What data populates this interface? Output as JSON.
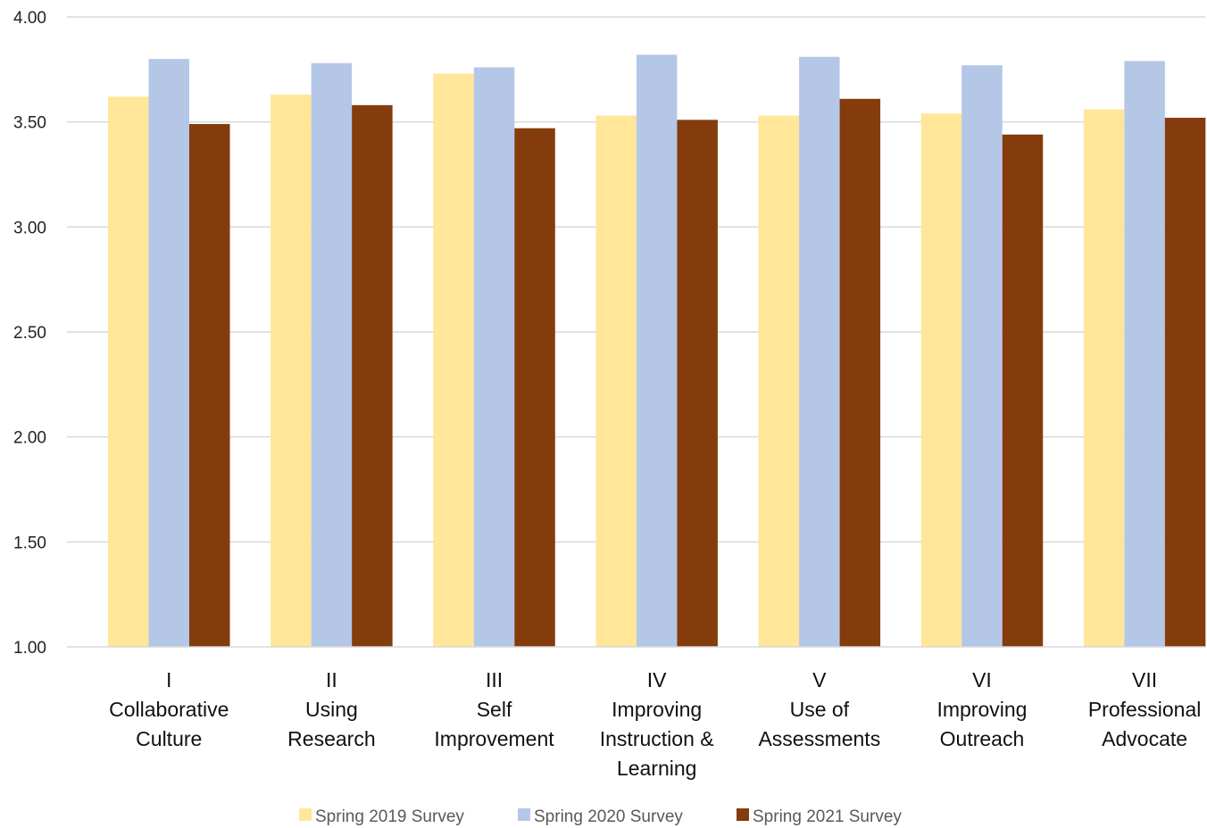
{
  "chart_data": {
    "type": "bar",
    "categories": [
      [
        "I",
        "Collaborative",
        "Culture"
      ],
      [
        "II",
        "Using",
        "Research"
      ],
      [
        "III",
        "Self",
        "Improvement"
      ],
      [
        "IV",
        "Improving",
        "Instruction &",
        "Learning"
      ],
      [
        "V",
        "Use of",
        "Assessments"
      ],
      [
        "VI",
        "Improving",
        "Outreach"
      ],
      [
        "VII",
        "Professional",
        "Advocate"
      ]
    ],
    "series": [
      {
        "name": "Spring 2019 Survey",
        "color": "#FFE699",
        "values": [
          3.62,
          3.63,
          3.73,
          3.53,
          3.53,
          3.54,
          3.56
        ]
      },
      {
        "name": "Spring 2020 Survey",
        "color": "#B4C7E7",
        "values": [
          3.8,
          3.78,
          3.76,
          3.82,
          3.81,
          3.77,
          3.79
        ]
      },
      {
        "name": "Spring 2021 Survey",
        "color": "#843C0C",
        "values": [
          3.49,
          3.58,
          3.47,
          3.51,
          3.61,
          3.44,
          3.52
        ]
      }
    ],
    "ylim": [
      1.0,
      4.0
    ],
    "yticks": [
      "1.00",
      "1.50",
      "2.00",
      "2.50",
      "3.00",
      "3.50",
      "4.00"
    ],
    "title": "",
    "xlabel": "",
    "ylabel": "",
    "grid": true,
    "legend_position": "bottom"
  }
}
